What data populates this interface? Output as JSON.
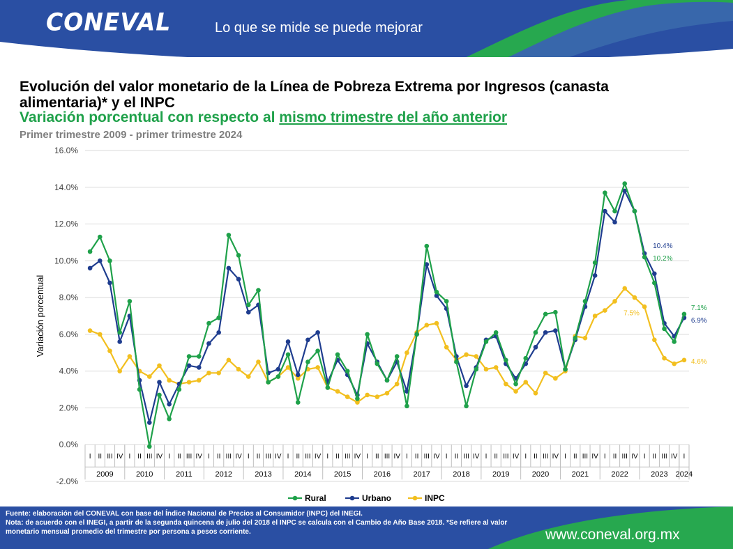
{
  "header": {
    "logo_text": "CONEVAL",
    "slogan": "Lo que se mide se puede mejorar",
    "colors": {
      "banner_blue": "#2a4fa3",
      "banner_green": "#27a84f"
    }
  },
  "title": "Evolución del valor monetario de la Línea de Pobreza Extrema por Ingresos (canasta alimentaria)* y el INPC",
  "subtitle_prefix": "Variación porcentual con respecto al ",
  "subtitle_underlined": "mismo trimestre del año anterior",
  "period": "Primer trimestre 2009 - primer trimestre 2024",
  "chart_data": {
    "type": "line",
    "ylabel": "Variación porcentual",
    "ylim": [
      -2,
      16
    ],
    "ytick_labels": [
      "-2.0%",
      "0.0%",
      "2.0%",
      "4.0%",
      "6.0%",
      "8.0%",
      "10.0%",
      "12.0%",
      "14.0%",
      "16.0%"
    ],
    "quarter_labels": [
      "I",
      "II",
      "III",
      "IV",
      "I",
      "II",
      "III",
      "IV",
      "I",
      "II",
      "III",
      "IV",
      "I",
      "II",
      "III",
      "IV",
      "I",
      "II",
      "III",
      "IV",
      "I",
      "II",
      "III",
      "IV",
      "I",
      "II",
      "III",
      "IV",
      "I",
      "II",
      "III",
      "IV",
      "I",
      "II",
      "III",
      "IV",
      "I",
      "II",
      "III",
      "IV",
      "I",
      "II",
      "III",
      "IV",
      "I",
      "II",
      "III",
      "IV",
      "I",
      "II",
      "III",
      "IV",
      "I",
      "II",
      "III",
      "IV",
      "I",
      "II",
      "III",
      "IV",
      "I"
    ],
    "years": [
      "2009",
      "2010",
      "2011",
      "2012",
      "2013",
      "2014",
      "2015",
      "2016",
      "2017",
      "2018",
      "2019",
      "2020",
      "2021",
      "2022",
      "2023",
      "2024"
    ],
    "legend_position": "bottom",
    "grid": true,
    "series": [
      {
        "name": "Rural",
        "color": "#1fa14a",
        "values": [
          10.5,
          11.3,
          10.0,
          6.1,
          7.8,
          3.0,
          -0.1,
          2.7,
          1.4,
          3.0,
          4.8,
          4.8,
          6.6,
          6.9,
          11.4,
          10.3,
          7.6,
          8.4,
          3.4,
          3.7,
          4.9,
          2.3,
          4.5,
          5.1,
          3.1,
          4.9,
          4.0,
          2.5,
          6.0,
          4.4,
          3.5,
          4.8,
          2.1,
          6.0,
          10.8,
          8.3,
          7.8,
          4.5,
          2.1,
          4.1,
          5.6,
          6.1,
          4.6,
          3.3,
          4.7,
          6.1,
          7.1,
          7.2,
          4.1,
          5.8,
          7.8,
          9.9,
          13.7,
          12.7,
          14.2,
          12.7,
          10.2,
          8.8,
          6.3,
          5.6,
          7.1
        ]
      },
      {
        "name": "Urbano",
        "color": "#1f3d8f",
        "values": [
          9.6,
          10.0,
          8.8,
          5.6,
          7.0,
          3.5,
          1.2,
          3.4,
          2.2,
          3.3,
          4.3,
          4.2,
          5.5,
          6.1,
          9.6,
          9.0,
          7.2,
          7.6,
          3.9,
          4.1,
          5.6,
          3.8,
          5.7,
          6.1,
          3.4,
          4.6,
          3.8,
          2.7,
          5.5,
          4.5,
          3.5,
          4.5,
          2.9,
          6.0,
          9.8,
          8.1,
          7.4,
          4.8,
          3.2,
          4.2,
          5.7,
          5.9,
          4.4,
          3.6,
          4.4,
          5.3,
          6.1,
          6.2,
          4.1,
          5.7,
          7.5,
          9.2,
          12.7,
          12.1,
          13.8,
          12.7,
          10.4,
          9.3,
          6.6,
          5.9,
          6.9
        ]
      },
      {
        "name": "INPC",
        "color": "#f2bf1f",
        "values": [
          6.2,
          6.0,
          5.1,
          4.0,
          4.8,
          4.0,
          3.7,
          4.3,
          3.5,
          3.3,
          3.4,
          3.5,
          3.9,
          3.9,
          4.6,
          4.1,
          3.7,
          4.5,
          3.4,
          3.7,
          4.2,
          3.6,
          4.1,
          4.2,
          3.1,
          2.9,
          2.6,
          2.3,
          2.7,
          2.6,
          2.8,
          3.3,
          5.0,
          6.1,
          6.5,
          6.6,
          5.3,
          4.6,
          4.9,
          4.8,
          4.1,
          4.2,
          3.3,
          2.9,
          3.4,
          2.8,
          3.9,
          3.6,
          4.0,
          5.9,
          5.8,
          7.0,
          7.3,
          7.8,
          8.5,
          8.0,
          7.5,
          5.7,
          4.7,
          4.4,
          4.6
        ]
      }
    ],
    "annotations": [
      {
        "text": "10.4%",
        "series": "Urbano",
        "index": 56
      },
      {
        "text": "10.2%",
        "series": "Rural",
        "index": 56
      },
      {
        "text": "7.5%",
        "series": "INPC",
        "index": 56
      },
      {
        "text": "7.1%",
        "series": "Rural",
        "index": 60
      },
      {
        "text": "6.9%",
        "series": "Urbano",
        "index": 60
      },
      {
        "text": "4.6%",
        "series": "INPC",
        "index": 60
      }
    ]
  },
  "footer": {
    "source": "Fuente: elaboración del CONEVAL con base del Índice Nacional de Precios al Consumidor (INPC) del INEGI.",
    "note": "Nota: de acuerdo con el INEGI, a partir de la segunda quincena de julio del 2018 el INPC se calcula con el Cambio de Año Base 2018. *Se refiere al valor monetario mensual promedio del trimestre por persona a pesos corriente.",
    "website": "www.coneval.org.mx"
  }
}
